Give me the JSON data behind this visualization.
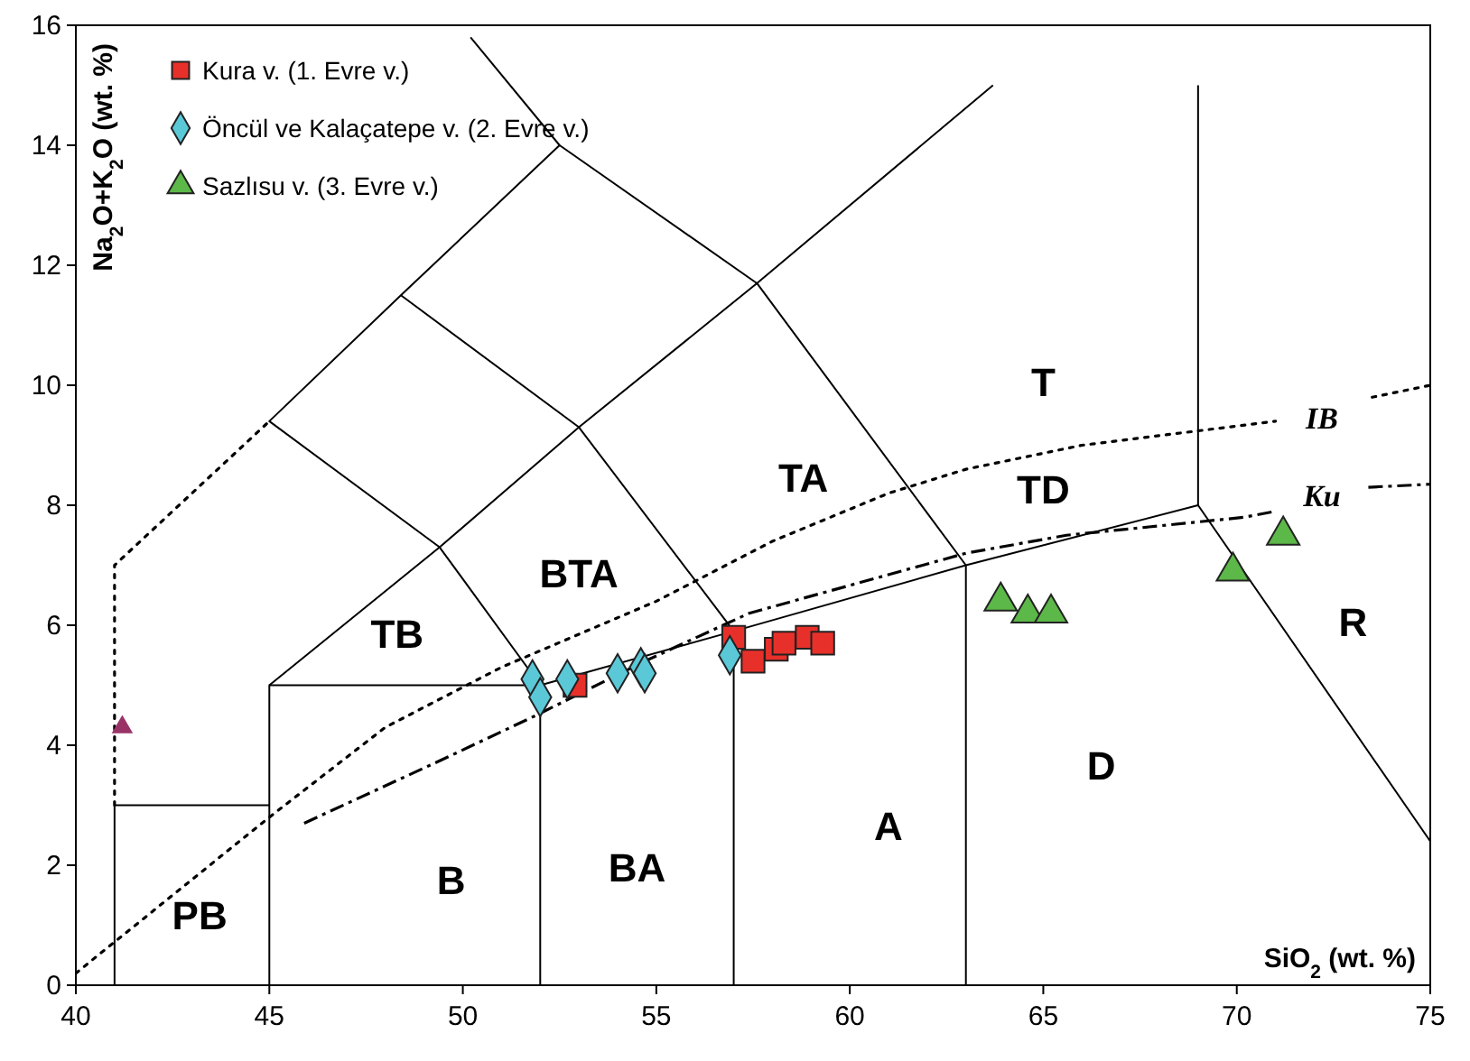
{
  "chart_data": {
    "type": "scatter",
    "xlabel": "SiO$_{2}$ (wt. %)",
    "ylabel": "Na$_{2}$O+K$_{2}$O (wt. %)",
    "xlim": [
      40,
      75
    ],
    "ylim": [
      0,
      16
    ],
    "xticks": [
      40,
      45,
      50,
      55,
      60,
      65,
      70,
      75
    ],
    "yticks": [
      0,
      2,
      4,
      6,
      8,
      10,
      12,
      14,
      16
    ],
    "grid": false,
    "legend": "top left",
    "series": [
      {
        "type": "line",
        "color": "#000000",
        "line_style": "solid",
        "marker": "none",
        "x": [
          41,
          41,
          45
        ],
        "values": [
          0,
          3,
          3
        ]
      },
      {
        "type": "line",
        "color": "#000000",
        "line_style": "solid",
        "marker": "none",
        "x": [
          45,
          45,
          52,
          52
        ],
        "values": [
          0,
          5,
          5,
          0
        ]
      },
      {
        "type": "line",
        "color": "#000000",
        "line_style": "solid",
        "marker": "none",
        "x": [
          52,
          57,
          63,
          69,
          75
        ],
        "values": [
          5,
          5.9,
          7,
          8,
          2.4
        ]
      },
      {
        "type": "line",
        "color": "#000000",
        "line_style": "solid",
        "marker": "none",
        "x": [
          57,
          57
        ],
        "values": [
          0,
          5.9
        ]
      },
      {
        "type": "line",
        "color": "#000000",
        "line_style": "solid",
        "marker": "none",
        "x": [
          63,
          63
        ],
        "values": [
          0,
          7
        ]
      },
      {
        "type": "line",
        "color": "#000000",
        "line_style": "solid",
        "marker": "none",
        "x": [
          69,
          69
        ],
        "values": [
          8,
          15
        ]
      },
      {
        "type": "line",
        "color": "#000000",
        "line_style": "solid",
        "marker": "none",
        "x": [
          45,
          49.4,
          53,
          57.6,
          63.7
        ],
        "values": [
          5,
          7.3,
          9.3,
          11.7,
          15
        ]
      },
      {
        "type": "line",
        "color": "#000000",
        "line_style": "solid",
        "marker": "none",
        "x": [
          52,
          49.4,
          45,
          48.4,
          52.5,
          57.6,
          63
        ],
        "values": [
          5,
          7.3,
          9.4,
          11.5,
          14,
          11.7,
          7
        ]
      },
      {
        "type": "line",
        "color": "#000000",
        "line_style": "solid",
        "marker": "none",
        "x": [
          48.4,
          53,
          57
        ],
        "values": [
          11.5,
          9.3,
          5.9
        ]
      },
      {
        "type": "line",
        "color": "#000000",
        "line_style": "solid",
        "marker": "none",
        "x": [
          52.5,
          50.2
        ],
        "values": [
          14,
          15.8
        ]
      },
      {
        "type": "line",
        "color": "#000000",
        "line_style": "dotted",
        "marker": "none",
        "x": [
          41,
          41,
          45
        ],
        "values": [
          3,
          7,
          9.4
        ]
      },
      {
        "type": "line",
        "color": "#000000",
        "line_style": "dotted",
        "marker": "none",
        "x": [
          40,
          45,
          48,
          51,
          55,
          58,
          61,
          63,
          66,
          71
        ],
        "values": [
          0.2,
          2.8,
          4.3,
          5.3,
          6.4,
          7.4,
          8.2,
          8.6,
          9,
          9.4
        ]
      },
      {
        "type": "line",
        "color": "#000000",
        "line_style": "dotted",
        "marker": "none",
        "x": [
          73.5,
          75
        ],
        "values": [
          9.8,
          10
        ]
      },
      {
        "type": "line",
        "color": "#000000",
        "line_style": "dashed",
        "marker": "none",
        "x": [
          45.9,
          49.6,
          51.9,
          54.7,
          57.4,
          63,
          65.6,
          70.2,
          71
        ],
        "values": [
          2.7,
          3.8,
          4.5,
          5.4,
          6.2,
          7.2,
          7.5,
          7.8,
          7.9
        ]
      },
      {
        "type": "line",
        "color": "#000000",
        "line_style": "dashed",
        "marker": "none",
        "x": [
          73.4,
          75
        ],
        "values": [
          8.3,
          8.35
        ]
      },
      {
        "name": "Kura v. (1. Evre v.)",
        "color": "#e8302a",
        "marker": "square",
        "x": [
          52.9,
          57,
          57.5,
          58.1,
          58.3,
          58.9,
          59.3
        ],
        "values": [
          5,
          5.8,
          5.4,
          5.6,
          5.7,
          5.8,
          5.7
        ]
      },
      {
        "name": "Öncül ve Kalaçatepe v. (2. Evre v.)",
        "color": "#5bc8d8",
        "marker": "diamond",
        "x": [
          51.8,
          52,
          52.7,
          54,
          54.6,
          54.7,
          56.9
        ],
        "values": [
          5.1,
          4.8,
          5.1,
          5.2,
          5.3,
          5.2,
          5.5
        ]
      },
      {
        "name": "Sazlısu v. (3. Evre v.)",
        "color": "#5cb848",
        "marker": "triangle",
        "x": [
          63.9,
          64.6,
          65.2,
          69.9,
          71.2
        ],
        "values": [
          6.4,
          6.2,
          6.2,
          6.9,
          7.5
        ]
      },
      {
        "color": "#993366",
        "marker": "triangle",
        "x": [
          41.2
        ],
        "values": [
          4.3
        ]
      }
    ],
    "annotations": [
      "T",
      "TD",
      "TA",
      "BTA",
      "TB",
      "R",
      "D",
      "A",
      "BA",
      "B",
      "PB",
      "IB",
      "Ku"
    ]
  }
}
